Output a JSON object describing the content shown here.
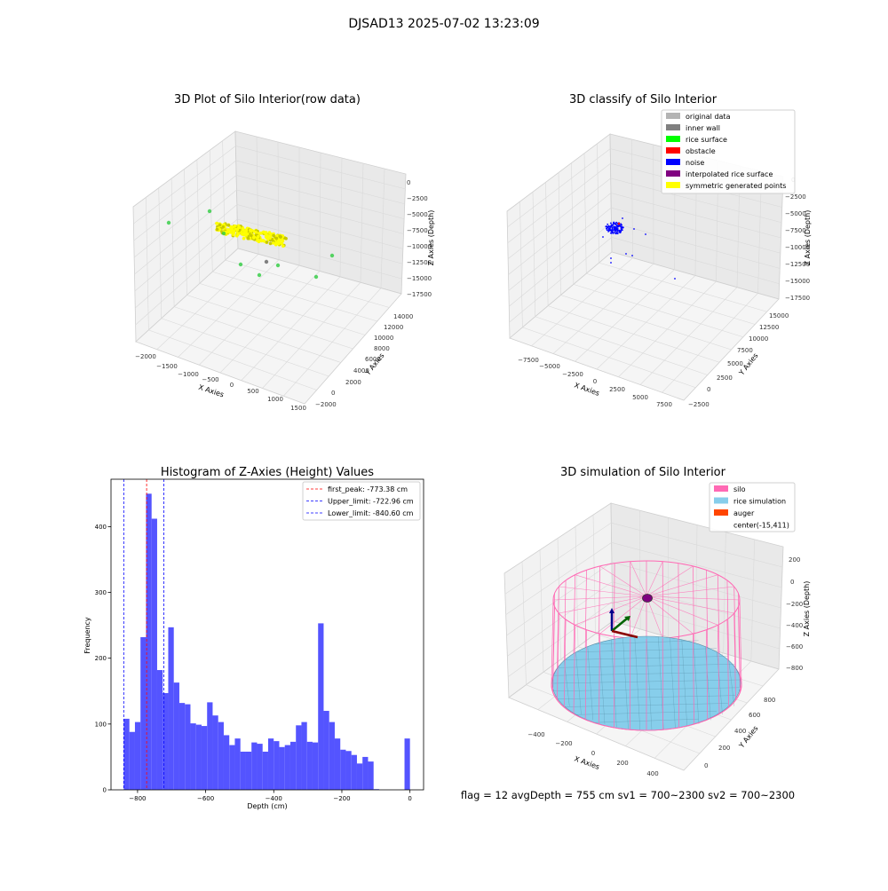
{
  "suptitle": "DJSAD13 2025-07-02 13:23:09",
  "footer": "flag = 12   avgDepth = 755 cm  sv1 = 700~2300  sv2 = 700~2300",
  "chart_data": [
    {
      "type": "scatter",
      "title": "3D Plot of Silo Interior(row data)",
      "xlabel": "X Axies",
      "ylabel": "Y Axies",
      "zlabel": "Z Axies (Depth)",
      "xticks": [
        "−2000",
        "−1500",
        "−1000",
        "−500",
        "0",
        "500",
        "1000",
        "1500"
      ],
      "yticks": [
        "−2000",
        "0",
        "2000",
        "4000",
        "6000",
        "8000",
        "10000",
        "12000",
        "14000"
      ],
      "zticks": [
        "0",
        "−2500",
        "−5000",
        "−7500",
        "−10000",
        "−12500",
        "−15000",
        "−17500"
      ],
      "point_colors": {
        "surface": "#ffff00",
        "edge": "#c8c800",
        "rice": "#2ecc40",
        "wall": "#808080"
      }
    },
    {
      "type": "scatter",
      "title": "3D classify of Silo Interior",
      "xlabel": "X Axies",
      "ylabel": "Y Axies",
      "zlabel": "Z Axies (Depth)",
      "xticks": [
        "−7500",
        "−5000",
        "−2500",
        "0",
        "2500",
        "5000",
        "7500"
      ],
      "yticks": [
        "−2500",
        "0",
        "2500",
        "5000",
        "7500",
        "10000",
        "12500",
        "15000"
      ],
      "zticks": [
        "0",
        "−2500",
        "−5000",
        "−7500",
        "−10000",
        "−12500",
        "−15000",
        "−17500"
      ],
      "legend_position": "top-right",
      "legend": [
        {
          "label": "original data",
          "color": "#b4b4b4"
        },
        {
          "label": "inner wall",
          "color": "#808080"
        },
        {
          "label": "rice surface",
          "color": "#00ff00"
        },
        {
          "label": "obstacle",
          "color": "#ff0000"
        },
        {
          "label": "noise",
          "color": "#0000ff"
        },
        {
          "label": "interpolated rice surface",
          "color": "#800080"
        },
        {
          "label": "symmetric generated points",
          "color": "#ffff00"
        }
      ]
    },
    {
      "type": "bar",
      "title": "Histogram of Z-Axies (Height) Values",
      "xlabel": "Depth (cm)",
      "ylabel": "Frequency",
      "xlim": [
        -878,
        40
      ],
      "ylim": [
        0,
        472
      ],
      "xticks": [
        -800,
        -600,
        -400,
        -200,
        0
      ],
      "yticks": [
        0,
        100,
        200,
        300,
        400
      ],
      "bar_color": "#4b4bff",
      "bin_edges": [
        -840.6,
        -824.0,
        -807.7,
        -791.4,
        -775.1,
        -758.8,
        -742.5,
        -726.2,
        -709.9,
        -693.6,
        -677.3,
        -661.0,
        -644.7,
        -628.4,
        -612.1,
        -595.8,
        -579.5,
        -563.2,
        -546.9,
        -530.6,
        -514.3,
        -498.0,
        -481.7,
        -465.4,
        -449.1,
        -432.8,
        -416.5,
        -400.2,
        -383.9,
        -367.6,
        -351.3,
        -335.0,
        -318.7,
        -302.4,
        -286.1,
        -269.8,
        -253.5,
        -237.2,
        -220.9,
        -204.6,
        -188.3,
        -172.0,
        -155.7,
        -139.4,
        -123.1,
        -106.8,
        -90.5
      ],
      "values": [
        108,
        88,
        103,
        232,
        450,
        412,
        182,
        147,
        247,
        163,
        132,
        130,
        101,
        99,
        97,
        133,
        113,
        103,
        83,
        68,
        78,
        58,
        58,
        72,
        70,
        58,
        78,
        74,
        65,
        68,
        73,
        98,
        103,
        73,
        72,
        253,
        120,
        103,
        78,
        61,
        59,
        53,
        40,
        50,
        43,
        1
      ],
      "extra_bar": {
        "x0": -16,
        "x1": 0,
        "value": 78
      },
      "vlines": [
        {
          "label": "first_peak: -773.38 cm",
          "x": -773.38,
          "color": "#ff0000"
        },
        {
          "label": "Upper_limit: -722.96 cm",
          "x": -722.96,
          "color": "#0000ff"
        },
        {
          "label": "Lower_limit: -840.60 cm",
          "x": -840.6,
          "color": "#0000ff"
        }
      ],
      "legend_position": "top-right"
    },
    {
      "type": "surface",
      "title": "3D simulation of Silo Interior",
      "xlabel": "X Axies",
      "ylabel": "Y Axies",
      "zlabel": "Z Axies (Depth)",
      "xticks": [
        "−400",
        "−200",
        "0",
        "200",
        "400"
      ],
      "yticks": [
        "0",
        "200",
        "400",
        "600",
        "800"
      ],
      "zticks": [
        "200",
        "0",
        "−200",
        "−400",
        "−600",
        "−800"
      ],
      "legend_position": "top-right",
      "legend": [
        {
          "label": "silo",
          "color": "#ff69b4"
        },
        {
          "label": "rice simulation",
          "color": "#87ceeb"
        },
        {
          "label": "auger",
          "color": "#ff4500"
        },
        {
          "label": "center(-15,411)",
          "color": ""
        }
      ],
      "center": [
        -15,
        411
      ]
    }
  ]
}
